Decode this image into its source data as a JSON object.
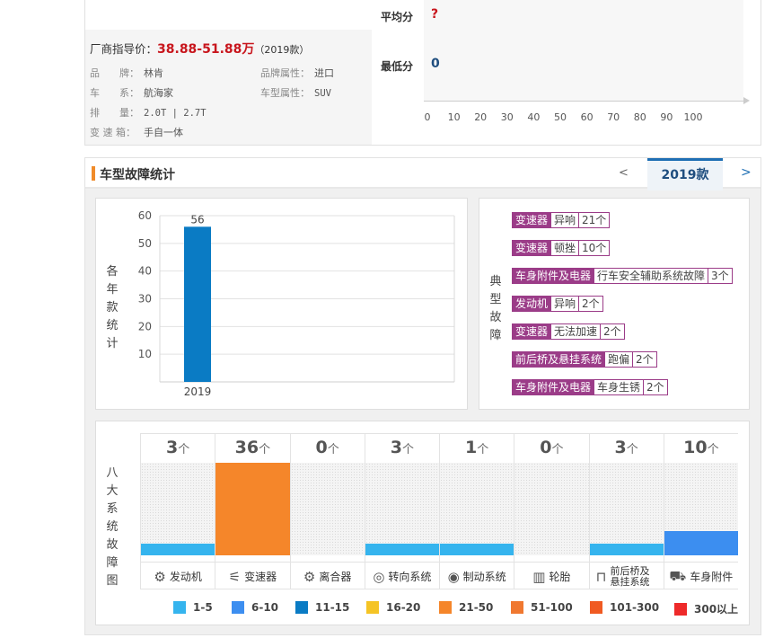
{
  "car": {
    "price_label": "厂商指导价：",
    "price": "38.88-51.88万",
    "price_year": "（2019款）",
    "specs": [
      {
        "label": "品　　牌：",
        "value": "林肯"
      },
      {
        "label": "品牌属性：",
        "value": "进口"
      },
      {
        "label": "车　　系：",
        "value": "航海家"
      },
      {
        "label": "车型属性：",
        "value": "SUV"
      },
      {
        "label": "排　　量：",
        "value": "2.0T | 2.7T"
      },
      {
        "label": "变 速 箱：",
        "value": "手自一体"
      }
    ]
  },
  "scores": {
    "avg_label": "平均分",
    "avg_value": "?",
    "min_label": "最低分",
    "min_value": "0",
    "ticks": [
      "0",
      "10",
      "20",
      "30",
      "40",
      "50",
      "60",
      "70",
      "80",
      "90",
      "100"
    ]
  },
  "section": {
    "title": "车型故障统计",
    "prev": "<",
    "year_tab": "2019款",
    "next": ">"
  },
  "yearly": {
    "side_label": [
      "各",
      "年",
      "款",
      "统",
      "计"
    ]
  },
  "chart_data": {
    "type": "bar",
    "categories": [
      "2019"
    ],
    "values": [
      56
    ],
    "yticks": [
      "60",
      "50",
      "40",
      "30",
      "20",
      "10"
    ],
    "ylim": [
      0,
      60
    ],
    "data_labels": [
      "56"
    ],
    "bar_color": "#0a7bc4"
  },
  "faults": {
    "side_label": [
      "典",
      "型",
      "故",
      "障"
    ],
    "items": [
      {
        "component": "变速器",
        "type": "异响",
        "count": "21个"
      },
      {
        "component": "变速器",
        "type": "顿挫",
        "count": "10个"
      },
      {
        "component": "车身附件及电器",
        "type": "行车安全辅助系统故障",
        "count": "3个"
      },
      {
        "component": "发动机",
        "type": "异响",
        "count": "2个"
      },
      {
        "component": "变速器",
        "type": "无法加速",
        "count": "2个"
      },
      {
        "component": "前后桥及悬挂系统",
        "type": "跑偏",
        "count": "2个"
      },
      {
        "component": "车身附件及电器",
        "type": "车身生锈",
        "count": "2个"
      }
    ]
  },
  "systems": {
    "side_label": [
      "八",
      "大",
      "系",
      "统",
      "故",
      "障",
      "图"
    ],
    "unit": "个",
    "items": [
      {
        "count": "3",
        "name": "发动机",
        "icon": "engine-icon",
        "glyph": "⚙",
        "level": 0.08,
        "color": "#35b4ee"
      },
      {
        "count": "36",
        "name": "变速器",
        "icon": "gearshift-icon",
        "glyph": "⚟",
        "level": 0.62,
        "color": "#f5862a"
      },
      {
        "count": "0",
        "name": "离合器",
        "icon": "clutch-icon",
        "glyph": "⚙",
        "level": 0,
        "color": "#35b4ee"
      },
      {
        "count": "3",
        "name": "转向系统",
        "icon": "steering-wheel-icon",
        "glyph": "◎",
        "level": 0.08,
        "color": "#35b4ee"
      },
      {
        "count": "1",
        "name": "制动系统",
        "icon": "brake-icon",
        "glyph": "◉",
        "level": 0.08,
        "color": "#35b4ee"
      },
      {
        "count": "0",
        "name": "轮胎",
        "icon": "tire-icon",
        "glyph": "▥",
        "level": 0,
        "color": "#35b4ee"
      },
      {
        "count": "3",
        "name": "前后桥及悬挂系统",
        "icon": "suspension-icon",
        "glyph": "⊓",
        "level": 0.08,
        "color": "#35b4ee"
      },
      {
        "count": "10",
        "name": "车身附件",
        "icon": "car-body-icon",
        "glyph": "⛟",
        "level": 0.16,
        "color": "#3c8ef0"
      }
    ]
  },
  "legend": [
    {
      "label": "1-5",
      "color": "#35b4ee"
    },
    {
      "label": "6-10",
      "color": "#3c8ef0"
    },
    {
      "label": "11-15",
      "color": "#0a7bc4"
    },
    {
      "label": "16-20",
      "color": "#f5c425"
    },
    {
      "label": "21-50",
      "color": "#f5862a"
    },
    {
      "label": "51-100",
      "color": "#f07830"
    },
    {
      "label": "101-300",
      "color": "#f05a22"
    },
    {
      "label": "300以上",
      "color": "#ee2a2a"
    }
  ]
}
